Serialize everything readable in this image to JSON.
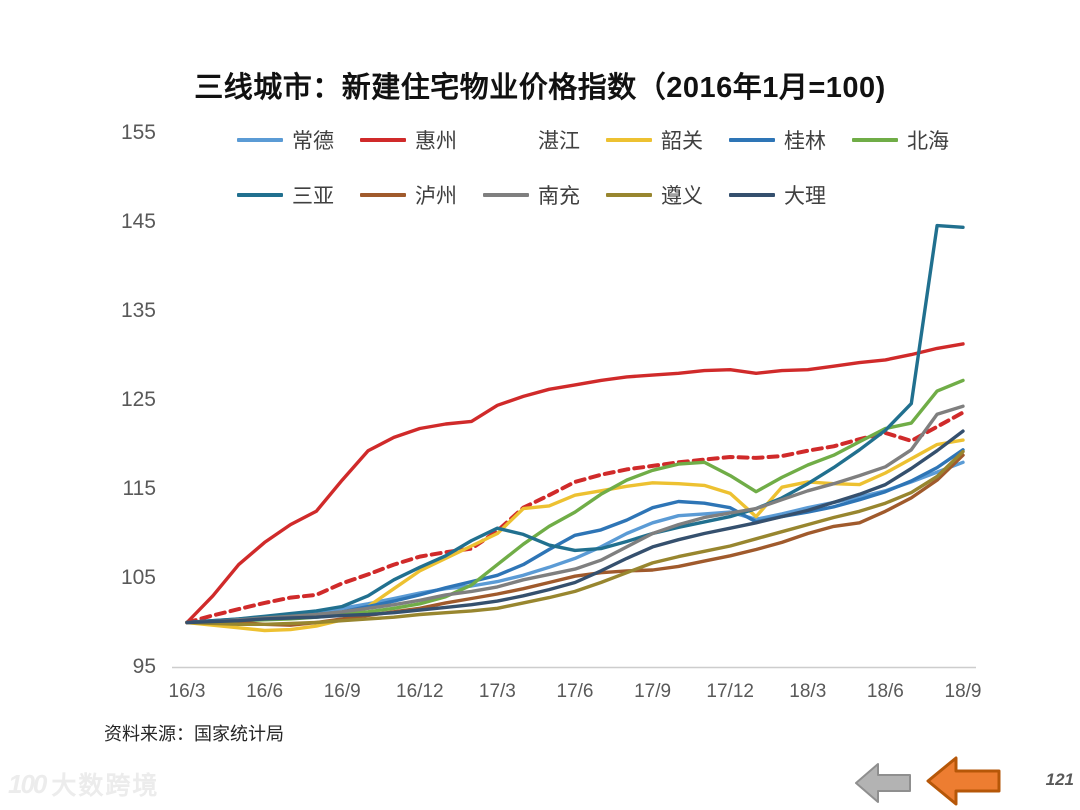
{
  "title": "三线城市：新建住宅物业价格指数（2016年1月=100)",
  "source_note": "资料来源：国家统计局",
  "watermark": {
    "logo_text": "100",
    "brand_text": "大数跨境"
  },
  "footer": {
    "page_number": "121",
    "back_arrow": "gray-left-arrow",
    "prev_arrow": "orange-left-arrow"
  },
  "axis_colors": {
    "tick_label": "#595959",
    "axis_line": "#cdcdcd"
  },
  "chart_data": {
    "type": "line",
    "title": "三线城市：新建住宅物业价格指数（2016年1月=100)",
    "x": [
      "16/3",
      "16/4",
      "16/5",
      "16/6",
      "16/7",
      "16/8",
      "16/9",
      "16/10",
      "16/11",
      "16/12",
      "17/1",
      "17/2",
      "17/3",
      "17/4",
      "17/5",
      "17/6",
      "17/7",
      "17/8",
      "17/9",
      "17/10",
      "17/11",
      "17/12",
      "18/1",
      "18/2",
      "18/3",
      "18/4",
      "18/5",
      "18/6",
      "18/7",
      "18/8",
      "18/9"
    ],
    "x_tick_labels": [
      "16/3",
      "16/6",
      "16/9",
      "16/12",
      "17/3",
      "17/6",
      "17/9",
      "17/12",
      "18/3",
      "18/6",
      "18/9"
    ],
    "x_tick_indices": [
      0,
      3,
      6,
      9,
      12,
      15,
      18,
      21,
      24,
      27,
      30
    ],
    "ylim": [
      95,
      155
    ],
    "y_ticks": [
      155,
      145,
      135,
      125,
      115,
      105,
      95
    ],
    "grid": false,
    "legend_position": "top-two-rows",
    "legend_row_split": 6,
    "series": [
      {
        "name": "常德",
        "key": "changde",
        "color": "#5B9BD5",
        "dash": false,
        "values": [
          100,
          100.2,
          100.4,
          100.6,
          100.9,
          101.2,
          101.6,
          102.1,
          102.7,
          103.3,
          103.8,
          104.1,
          104.6,
          105.3,
          106.2,
          107.2,
          108.5,
          110,
          111.2,
          112,
          112.2,
          112.4,
          111.6,
          112.2,
          112.9,
          113.5,
          114.1,
          114.8,
          115.8,
          116.9,
          118
        ]
      },
      {
        "name": "惠州",
        "key": "huizhou",
        "color": "#D02A2A",
        "dash": false,
        "values": [
          100,
          103,
          106.5,
          109,
          111,
          112.5,
          116,
          119.3,
          120.8,
          121.8,
          122.3,
          122.6,
          124.4,
          125.4,
          126.2,
          126.7,
          127.2,
          127.6,
          127.8,
          128,
          128.3,
          128.4,
          128,
          128.3,
          128.4,
          128.8,
          129.2,
          129.5,
          130.1,
          130.8,
          131.3
        ]
      },
      {
        "name": "湛江",
        "key": "zhanjiang",
        "color": "#D02A2A",
        "dash": true,
        "values": [
          100,
          100.8,
          101.5,
          102.2,
          102.8,
          103.1,
          104.4,
          105.4,
          106.5,
          107.4,
          107.9,
          108.3,
          110.3,
          112.9,
          114.3,
          115.8,
          116.6,
          117.2,
          117.6,
          118,
          118.3,
          118.6,
          118.5,
          118.7,
          119.3,
          119.8,
          120.6,
          121.3,
          120.4,
          122,
          123.6
        ]
      },
      {
        "name": "韶关",
        "key": "shaoguan",
        "color": "#EDC131",
        "dash": false,
        "values": [
          100,
          99.7,
          99.4,
          99.1,
          99.2,
          99.6,
          100.3,
          101.8,
          103.8,
          105.8,
          107.2,
          108.6,
          110,
          112.8,
          113.1,
          114.3,
          114.8,
          115.3,
          115.7,
          115.6,
          115.4,
          114.5,
          111.9,
          115.2,
          115.8,
          115.6,
          115.5,
          116.8,
          118.4,
          120,
          120.5
        ]
      },
      {
        "name": "桂林",
        "key": "guilin",
        "color": "#2E75B6",
        "dash": false,
        "values": [
          100,
          100.2,
          100.3,
          100.5,
          100.7,
          100.9,
          101.2,
          101.8,
          102.4,
          103.1,
          103.9,
          104.6,
          105.3,
          106.5,
          108.2,
          109.8,
          110.4,
          111.5,
          112.9,
          113.6,
          113.4,
          112.9,
          111.3,
          111.9,
          112.4,
          113,
          113.8,
          114.7,
          115.9,
          117.4,
          119.4
        ]
      },
      {
        "name": "北海",
        "key": "beihai",
        "color": "#70AD47",
        "dash": false,
        "values": [
          100,
          100.1,
          100.2,
          100.3,
          100.4,
          100.6,
          100.9,
          101.2,
          101.6,
          102.1,
          102.9,
          104.2,
          106.5,
          108.8,
          110.8,
          112.4,
          114.4,
          116,
          117.1,
          117.8,
          118,
          116.5,
          114.7,
          116.3,
          117.7,
          118.8,
          120.3,
          121.8,
          122.4,
          126,
          127.2
        ]
      },
      {
        "name": "三亚",
        "key": "sanya",
        "color": "#21708F",
        "dash": false,
        "values": [
          100,
          100.2,
          100.4,
          100.7,
          101,
          101.3,
          101.8,
          103,
          104.8,
          106.2,
          107.5,
          109.2,
          110.6,
          109.9,
          108.7,
          108.1,
          108.3,
          109.1,
          110,
          110.7,
          111.3,
          111.9,
          112.8,
          114,
          115.6,
          117.4,
          119.4,
          121.6,
          124.6,
          144.6,
          144.4
        ]
      },
      {
        "name": "泸州",
        "key": "luzhou",
        "color": "#A05A2C",
        "dash": false,
        "values": [
          100,
          100.1,
          100,
          99.8,
          99.7,
          100,
          100.4,
          100.8,
          101.2,
          101.6,
          102.2,
          102.7,
          103.2,
          103.8,
          104.5,
          105.2,
          105.6,
          105.8,
          105.9,
          106.3,
          106.9,
          107.5,
          108.2,
          109,
          110,
          110.8,
          111.2,
          112.5,
          114,
          116,
          118.8
        ]
      },
      {
        "name": "南充",
        "key": "nanchong",
        "color": "#7F7F7F",
        "dash": false,
        "values": [
          100,
          100.1,
          100.3,
          100.5,
          100.7,
          100.9,
          101.2,
          101.6,
          102,
          102.5,
          103.1,
          103.5,
          104,
          104.8,
          105.4,
          106,
          107,
          108.5,
          110,
          111,
          111.8,
          112.3,
          112.8,
          113.8,
          114.8,
          115.6,
          116.5,
          117.5,
          119.4,
          123.4,
          124.3
        ]
      },
      {
        "name": "遵义",
        "key": "zunyi",
        "color": "#98862F",
        "dash": false,
        "values": [
          100,
          99.9,
          99.8,
          99.8,
          99.9,
          100,
          100.2,
          100.4,
          100.6,
          100.9,
          101.1,
          101.3,
          101.6,
          102.2,
          102.8,
          103.5,
          104.5,
          105.6,
          106.7,
          107.4,
          108,
          108.6,
          109.4,
          110.2,
          111,
          111.8,
          112.5,
          113.4,
          114.6,
          116.4,
          119.2
        ]
      },
      {
        "name": "大理",
        "key": "dali",
        "color": "#35506E",
        "dash": false,
        "values": [
          100,
          100.1,
          100.2,
          100.4,
          100.5,
          100.6,
          100.8,
          100.9,
          101.1,
          101.4,
          101.7,
          102,
          102.4,
          103,
          103.7,
          104.5,
          105.8,
          107.2,
          108.5,
          109.3,
          110,
          110.6,
          111.2,
          111.9,
          112.6,
          113.5,
          114.4,
          115.5,
          117.3,
          119.3,
          121.5
        ]
      }
    ]
  }
}
